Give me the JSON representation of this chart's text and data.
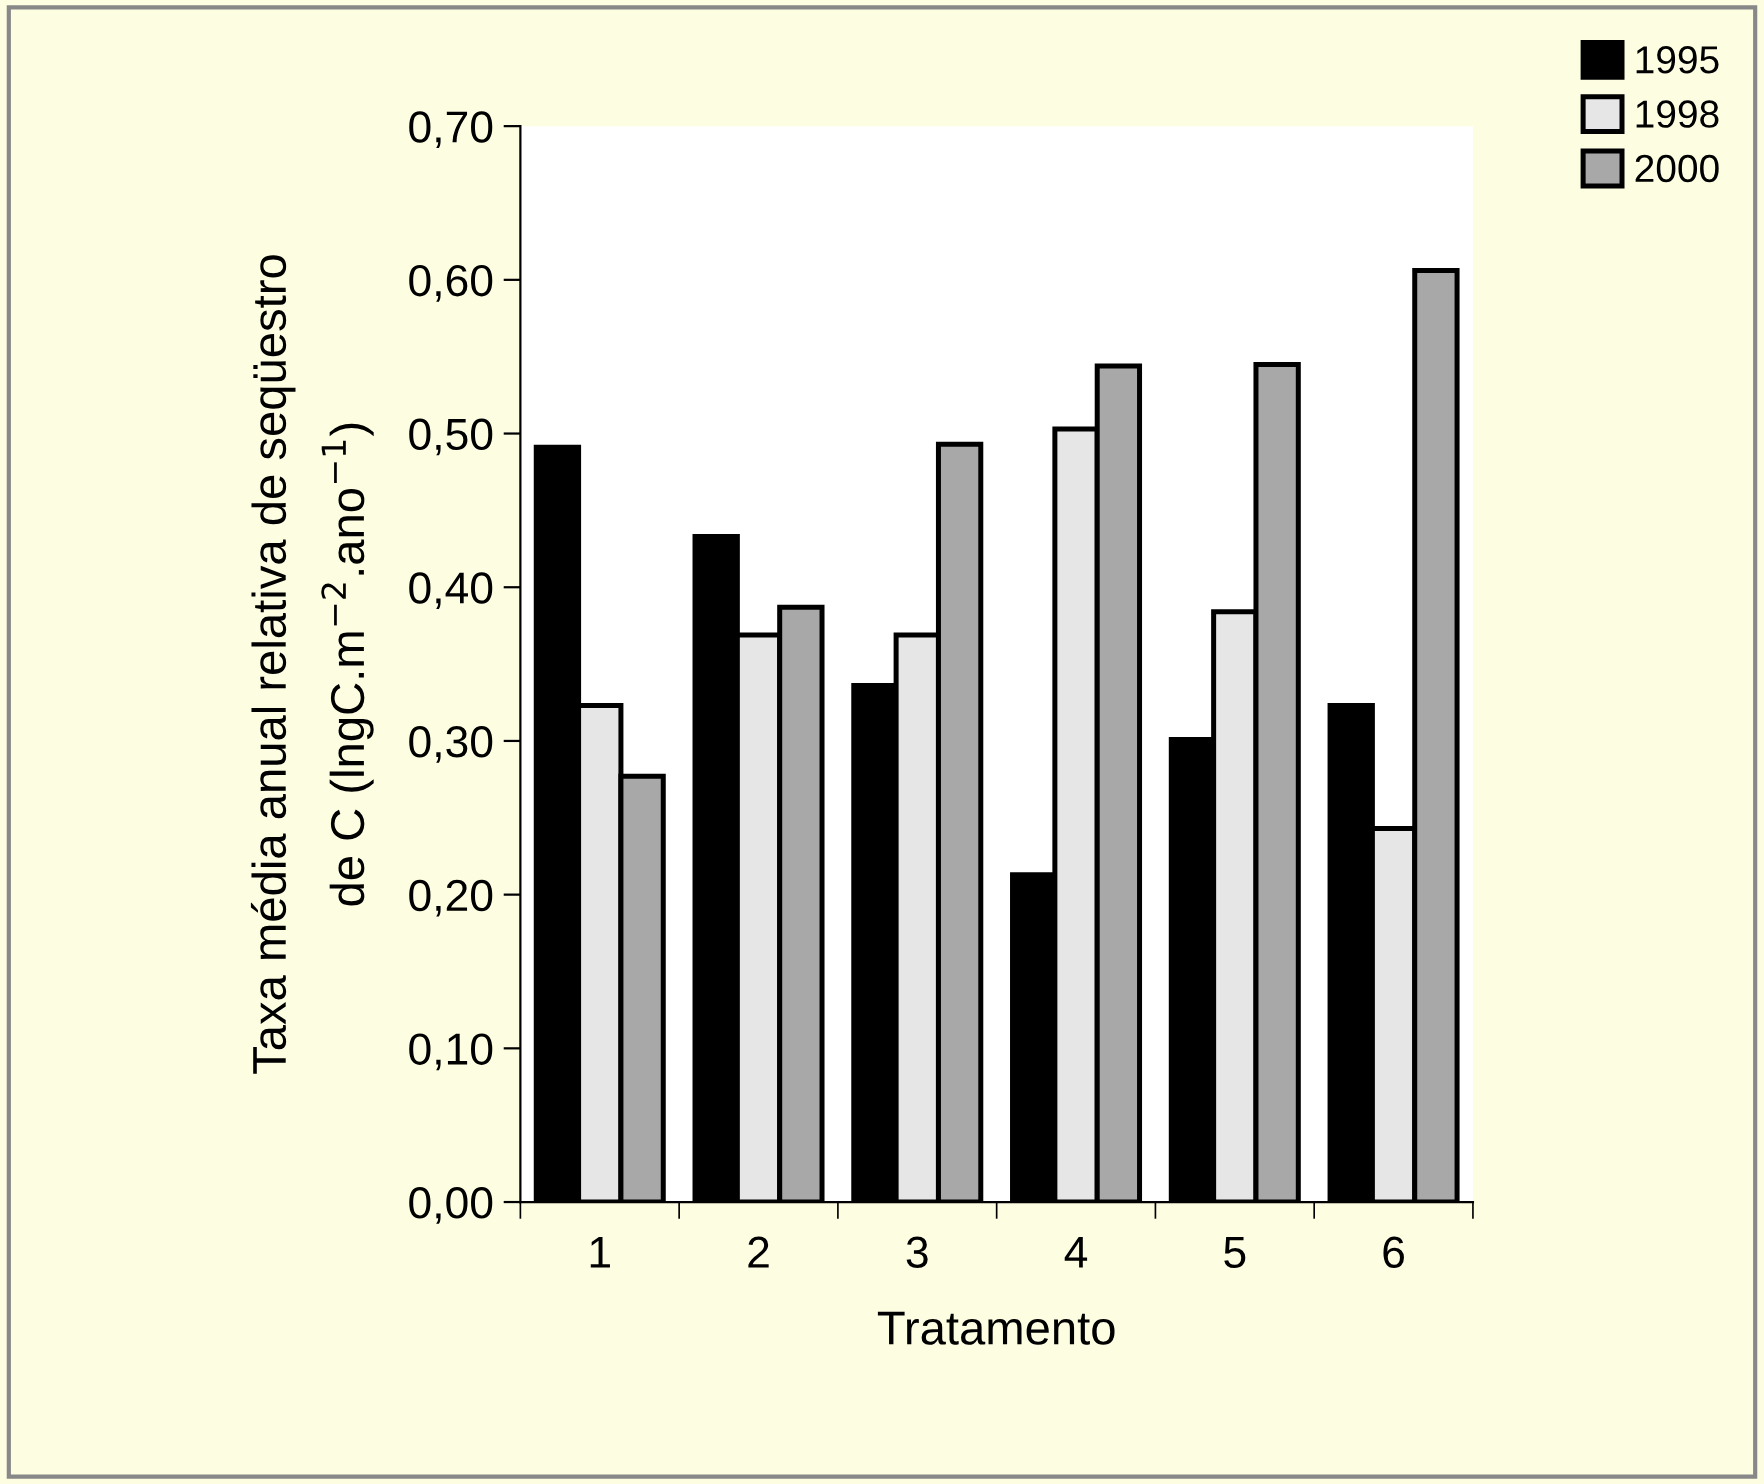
{
  "chart_data": {
    "type": "bar",
    "xlabel": "Tratamento",
    "ylabel": "Taxa média anual relativa de seqüestro\nde C (lngC.m$^{−2}$.ano$^{−1}$)",
    "categories": [
      "1",
      "2",
      "3",
      "4",
      "5",
      "6"
    ],
    "series": [
      {
        "name": "1995",
        "color": "#000000",
        "values": [
          0.491,
          0.433,
          0.336,
          0.213,
          0.301,
          0.323
        ]
      },
      {
        "name": "1998",
        "color": "#e6e6e6",
        "values": [
          0.323,
          0.369,
          0.369,
          0.503,
          0.384,
          0.243
        ]
      },
      {
        "name": "2000",
        "color": "#a8a8a8",
        "values": [
          0.277,
          0.387,
          0.493,
          0.544,
          0.545,
          0.606
        ]
      }
    ],
    "ylim": [
      0,
      0.7
    ],
    "yticks": [
      {
        "value": 0,
        "label": "0,00"
      },
      {
        "value": 0.1,
        "label": "0,10"
      },
      {
        "value": 0.2,
        "label": "0,20"
      },
      {
        "value": 0.3,
        "label": "0,30"
      },
      {
        "value": 0.4,
        "label": "0,40"
      },
      {
        "value": 0.5,
        "label": "0,50"
      },
      {
        "value": 0.6,
        "label": "0,60"
      },
      {
        "value": 0.7,
        "label": "0,70"
      }
    ],
    "grid": false,
    "legend": "top right"
  }
}
